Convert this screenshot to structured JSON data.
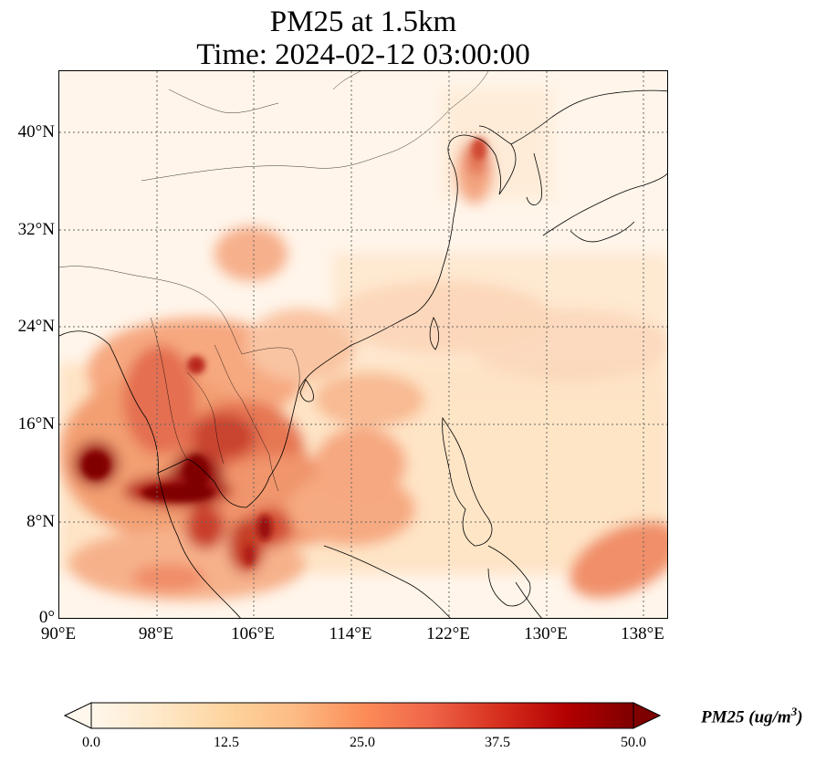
{
  "title": {
    "line1": "PM25 at 1.5km",
    "line2": "Time: 2024-02-12 03:00:00"
  },
  "map": {
    "projection": "PlateCarree",
    "lon_range": [
      90,
      140
    ],
    "lat_range": [
      0,
      45
    ],
    "gridlines": "dotted",
    "coastlines": true,
    "borders": true
  },
  "lat_ticks": [
    "40°N",
    "32°N",
    "24°N",
    "16°N",
    "8°N",
    "0°"
  ],
  "lon_ticks": [
    "90°E",
    "98°E",
    "106°E",
    "114°E",
    "122°E",
    "130°E",
    "138°E"
  ],
  "colorbar": {
    "colormap": "OrRd",
    "min": 0.0,
    "max": 50.0,
    "extend": "both",
    "ticks": [
      "0.0",
      "12.5",
      "25.0",
      "37.5",
      "50.0"
    ],
    "label": "PM25 (ug/m",
    "label_sup": "3",
    "label_end": ")",
    "colors": [
      "#fff7ec",
      "#fee8c8",
      "#fdd49e",
      "#fdbb84",
      "#fc8d59",
      "#ef6548",
      "#d7301f",
      "#b30000",
      "#7f0000"
    ]
  }
}
